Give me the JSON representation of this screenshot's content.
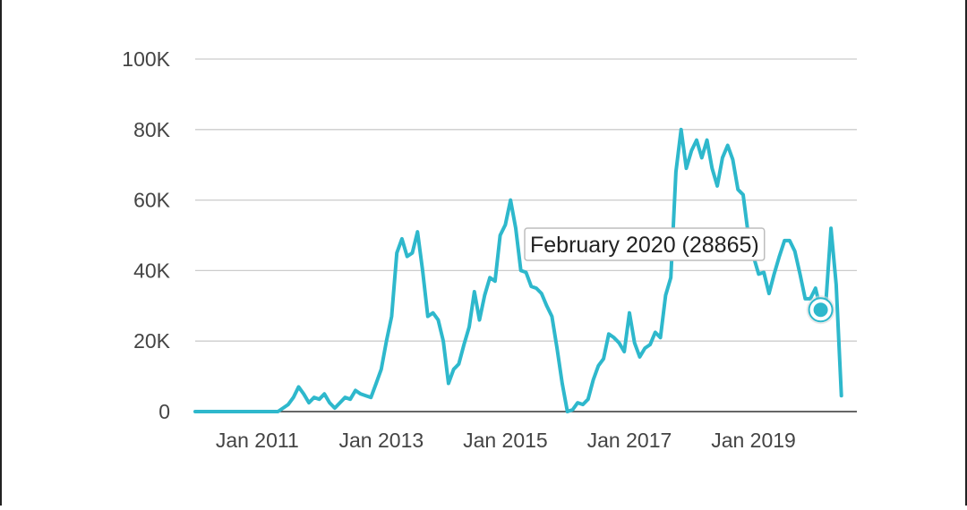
{
  "chart_data": {
    "type": "line",
    "title": "",
    "xlabel": "",
    "ylabel": "",
    "ylim": [
      0,
      100000
    ],
    "xlim": [
      "2010-01",
      "2020-09"
    ],
    "grid": true,
    "y_ticks": [
      0,
      20000,
      40000,
      60000,
      80000,
      100000
    ],
    "y_tick_labels": [
      "0",
      "20K",
      "40K",
      "60K",
      "80K",
      "100K"
    ],
    "x_tick_labels": [
      "Jan 2011",
      "Jan 2013",
      "Jan 2015",
      "Jan 2017",
      "Jan 2019"
    ],
    "x_tick_dates": [
      "2011-01",
      "2013-01",
      "2015-01",
      "2017-01",
      "2019-01"
    ],
    "line_color": "#2eb8cc",
    "series": [
      {
        "points": [
          [
            "2010-01",
            0
          ],
          [
            "2010-03",
            0
          ],
          [
            "2010-05",
            0
          ],
          [
            "2010-07",
            0
          ],
          [
            "2010-09",
            0
          ],
          [
            "2010-11",
            0
          ],
          [
            "2011-01",
            0
          ],
          [
            "2011-03",
            0
          ],
          [
            "2011-05",
            0
          ],
          [
            "2011-06",
            1000
          ],
          [
            "2011-07",
            2000
          ],
          [
            "2011-08",
            4000
          ],
          [
            "2011-09",
            7000
          ],
          [
            "2011-10",
            5000
          ],
          [
            "2011-11",
            2500
          ],
          [
            "2011-12",
            4000
          ],
          [
            "2012-01",
            3500
          ],
          [
            "2012-02",
            5000
          ],
          [
            "2012-03",
            2500
          ],
          [
            "2012-04",
            1000
          ],
          [
            "2012-05",
            2500
          ],
          [
            "2012-06",
            4000
          ],
          [
            "2012-07",
            3500
          ],
          [
            "2012-08",
            6000
          ],
          [
            "2012-09",
            5000
          ],
          [
            "2012-10",
            4500
          ],
          [
            "2012-11",
            4000
          ],
          [
            "2012-12",
            8000
          ],
          [
            "2013-01",
            12000
          ],
          [
            "2013-02",
            20000
          ],
          [
            "2013-03",
            27000
          ],
          [
            "2013-04",
            45000
          ],
          [
            "2013-05",
            49000
          ],
          [
            "2013-06",
            44000
          ],
          [
            "2013-07",
            45000
          ],
          [
            "2013-08",
            51000
          ],
          [
            "2013-09",
            40000
          ],
          [
            "2013-10",
            27000
          ],
          [
            "2013-11",
            28000
          ],
          [
            "2013-12",
            26000
          ],
          [
            "2014-01",
            20000
          ],
          [
            "2014-02",
            8000
          ],
          [
            "2014-03",
            12000
          ],
          [
            "2014-04",
            13500
          ],
          [
            "2014-05",
            19000
          ],
          [
            "2014-06",
            24000
          ],
          [
            "2014-07",
            34000
          ],
          [
            "2014-08",
            26000
          ],
          [
            "2014-09",
            33000
          ],
          [
            "2014-10",
            38000
          ],
          [
            "2014-11",
            37000
          ],
          [
            "2014-12",
            50000
          ],
          [
            "2015-01",
            53000
          ],
          [
            "2015-02",
            60000
          ],
          [
            "2015-03",
            52000
          ],
          [
            "2015-04",
            40000
          ],
          [
            "2015-05",
            39500
          ],
          [
            "2015-06",
            35500
          ],
          [
            "2015-07",
            35000
          ],
          [
            "2015-08",
            33500
          ],
          [
            "2015-09",
            30000
          ],
          [
            "2015-10",
            27000
          ],
          [
            "2015-11",
            18000
          ],
          [
            "2015-12",
            8000
          ],
          [
            "2016-01",
            0
          ],
          [
            "2016-02",
            500
          ],
          [
            "2016-03",
            2500
          ],
          [
            "2016-04",
            2000
          ],
          [
            "2016-05",
            3500
          ],
          [
            "2016-06",
            9000
          ],
          [
            "2016-07",
            13000
          ],
          [
            "2016-08",
            15000
          ],
          [
            "2016-09",
            22000
          ],
          [
            "2016-10",
            21000
          ],
          [
            "2016-11",
            19500
          ],
          [
            "2016-12",
            17000
          ],
          [
            "2017-01",
            28000
          ],
          [
            "2017-02",
            19500
          ],
          [
            "2017-03",
            15500
          ],
          [
            "2017-04",
            18000
          ],
          [
            "2017-05",
            19000
          ],
          [
            "2017-06",
            22500
          ],
          [
            "2017-07",
            21000
          ],
          [
            "2017-08",
            33000
          ],
          [
            "2017-09",
            38000
          ],
          [
            "2017-10",
            68000
          ],
          [
            "2017-11",
            80000
          ],
          [
            "2017-12",
            69000
          ],
          [
            "2018-01",
            74000
          ],
          [
            "2018-02",
            77000
          ],
          [
            "2018-03",
            72000
          ],
          [
            "2018-04",
            77000
          ],
          [
            "2018-05",
            69000
          ],
          [
            "2018-06",
            64000
          ],
          [
            "2018-07",
            72000
          ],
          [
            "2018-08",
            75500
          ],
          [
            "2018-09",
            71500
          ],
          [
            "2018-10",
            63000
          ],
          [
            "2018-11",
            61500
          ],
          [
            "2018-12",
            50000
          ],
          [
            "2019-01",
            44000
          ],
          [
            "2019-02",
            39000
          ],
          [
            "2019-03",
            39500
          ],
          [
            "2019-04",
            33500
          ],
          [
            "2019-05",
            39000
          ],
          [
            "2019-06",
            44000
          ],
          [
            "2019-07",
            48500
          ],
          [
            "2019-08",
            48500
          ],
          [
            "2019-09",
            45500
          ],
          [
            "2019-10",
            39000
          ],
          [
            "2019-11",
            32000
          ],
          [
            "2019-12",
            32000
          ],
          [
            "2020-01",
            35000
          ],
          [
            "2020-02",
            28865
          ],
          [
            "2020-03",
            31000
          ],
          [
            "2020-04",
            52000
          ],
          [
            "2020-05",
            36000
          ],
          [
            "2020-06",
            4500
          ]
        ]
      }
    ],
    "highlight": {
      "date": "2020-02",
      "value": 28865
    },
    "tooltip": "February 2020 (28865)"
  }
}
